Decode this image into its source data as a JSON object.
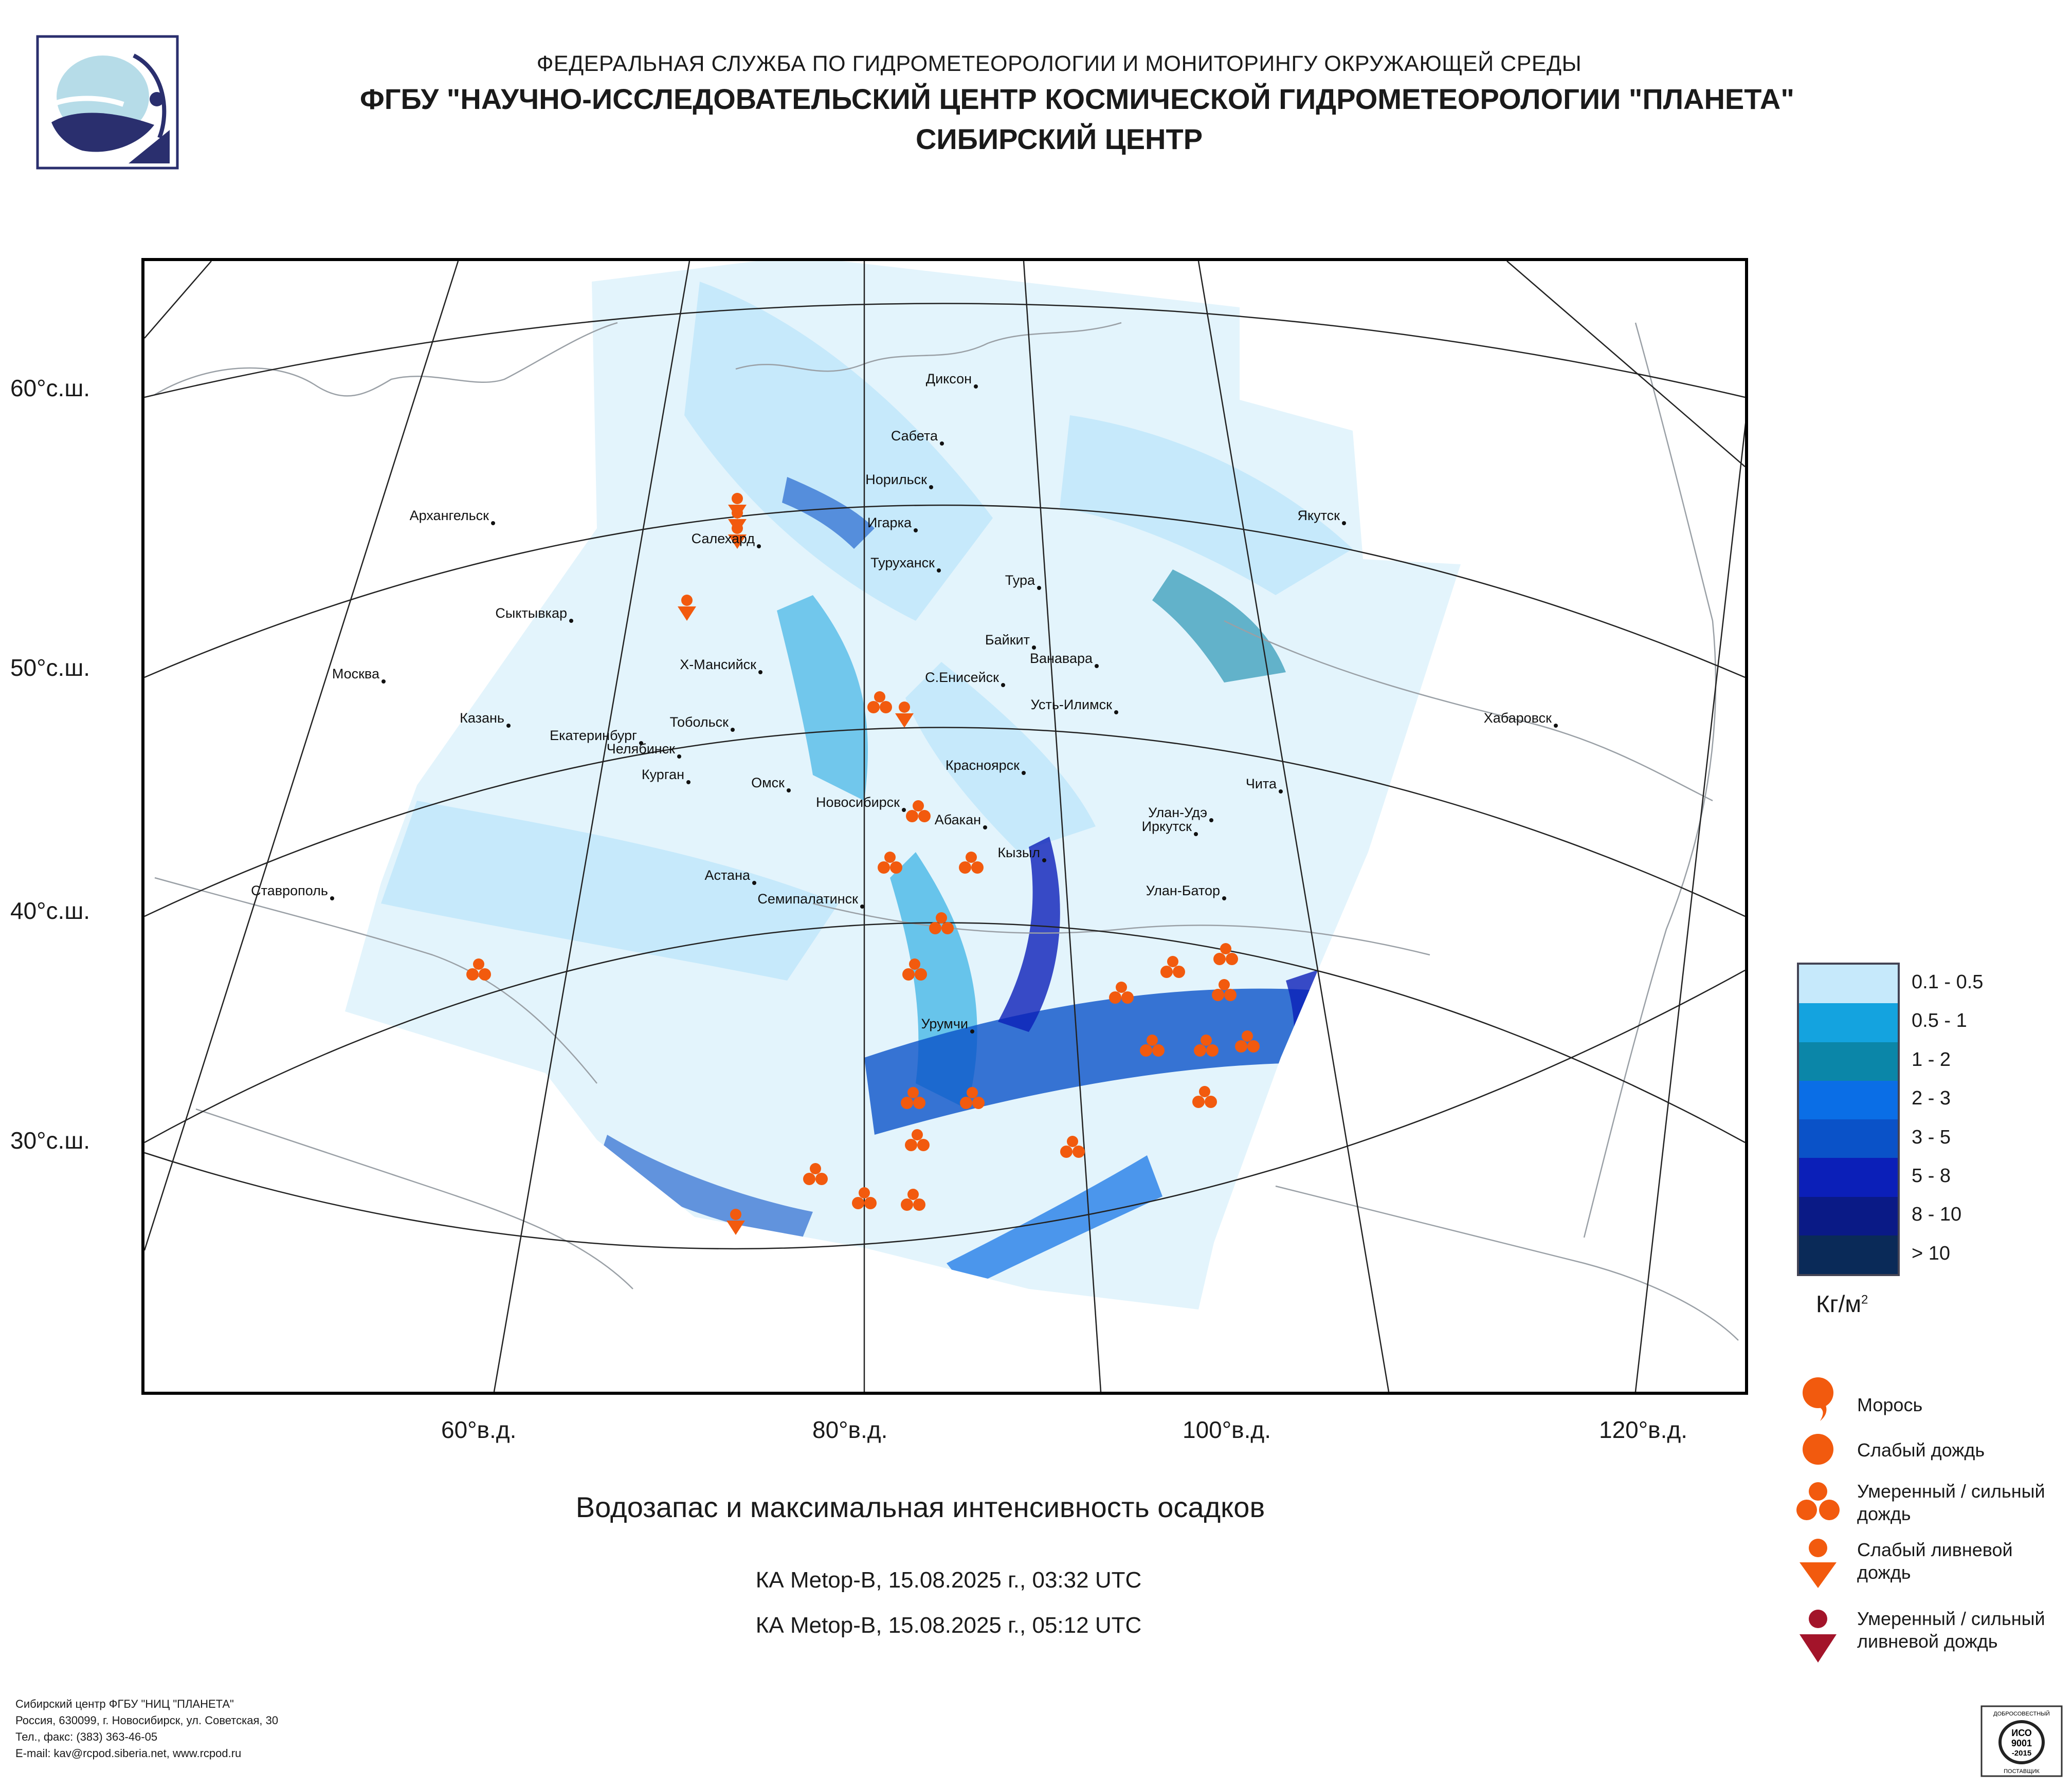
{
  "header": {
    "line1": "ФЕДЕРАЛЬНАЯ СЛУЖБА ПО ГИДРОМЕТЕОРОЛОГИИ И МОНИТОРИНГУ ОКРУЖАЮЩЕЙ СРЕДЫ",
    "line2": "ФГБУ \"НАУЧНО-ИССЛЕДОВАТЕЛЬСКИЙ ЦЕНТР КОСМИЧЕСКОЙ ГИДРОМЕТЕОРОЛОГИИ \"ПЛАНЕТА\"",
    "line3": "СИБИРСКИЙ ЦЕНТР"
  },
  "axes": {
    "lat_labels": [
      "60°с.ш.",
      "50°с.ш.",
      "40°с.ш.",
      "30°с.ш."
    ],
    "lon_labels": [
      "60°в.д.",
      "80°в.д.",
      "100°в.д.",
      "120°в.д."
    ]
  },
  "cities": [
    {
      "name": "Диксон"
    },
    {
      "name": "Сабета"
    },
    {
      "name": "Норильск"
    },
    {
      "name": "Игарка"
    },
    {
      "name": "Архангельск"
    },
    {
      "name": "Салехард"
    },
    {
      "name": "Туруханск"
    },
    {
      "name": "Тура"
    },
    {
      "name": "Якутск"
    },
    {
      "name": "Сыктывкар"
    },
    {
      "name": "Байкит"
    },
    {
      "name": "Ванавара"
    },
    {
      "name": "Москва"
    },
    {
      "name": "Х-Мансийск"
    },
    {
      "name": "С.Енисейск"
    },
    {
      "name": "Усть-Илимск"
    },
    {
      "name": "Казань"
    },
    {
      "name": "Екатеринбург"
    },
    {
      "name": "Тобольск"
    },
    {
      "name": "Хабаровск"
    },
    {
      "name": "Челябинск"
    },
    {
      "name": "Красноярск"
    },
    {
      "name": "Курган"
    },
    {
      "name": "Омск"
    },
    {
      "name": "Чита"
    },
    {
      "name": "Новосибирск"
    },
    {
      "name": "Абакан"
    },
    {
      "name": "Улан-Удэ"
    },
    {
      "name": "Иркутск"
    },
    {
      "name": "Кызыл"
    },
    {
      "name": "Астана"
    },
    {
      "name": "Ставрополь"
    },
    {
      "name": "Улан-Батор"
    },
    {
      "name": "Семипалатинск"
    },
    {
      "name": "Урумчи"
    }
  ],
  "legend": {
    "title": "Кг/м",
    "title_sup": "2",
    "bins": [
      {
        "label": "0.1 - 0.5",
        "color": "#c6e9fb"
      },
      {
        "label": "0.5 - 1",
        "color": "#14a3df"
      },
      {
        "label": "1 - 2",
        "color": "#0b86a8"
      },
      {
        "label": "2 - 3",
        "color": "#0a6ee6"
      },
      {
        "label": "3 - 5",
        "color": "#0a52c8"
      },
      {
        "label": "5 - 8",
        "color": "#0b1fb8"
      },
      {
        "label": "8 - 10",
        "color": "#0a1a86"
      },
      {
        "label": "> 10",
        "color": "#0a2a58"
      }
    ]
  },
  "symbols": {
    "drizzle": "Морось",
    "light_rain": "Слабый дождь",
    "moderate_rain_1": "Умеренный / сильный",
    "moderate_rain_2": "дождь",
    "light_shower_1": "Слабый ливневой",
    "light_shower_2": "дождь",
    "heavy_shower_1": "Умеренный / сильный",
    "heavy_shower_2": "ливневой дождь",
    "symbol_color": "#f25a0e",
    "heavy_color": "#a3142a"
  },
  "caption": {
    "title": "Водозапас и максимальная интенсивность осадков",
    "pass1": "КА Metop-B, 15.08.2025 г., 03:32 UTC",
    "pass2": "КА Metop-B, 15.08.2025 г., 05:12 UTC"
  },
  "footer": {
    "l1": "Сибирский центр ФГБУ \"НИЦ \"ПЛАНЕТА\"",
    "l2": "Россия, 630099, г. Новосибирск, ул. Советская, 30",
    "l3": "Тел., факс: (383) 363-46-05",
    "l4": "E-mail: kav@rcpod.siberia.net, www.rcpod.ru"
  },
  "cert": {
    "top": "ДОБРОСОВЕСТНЫЙ",
    "iso": "ИСО",
    "num": "9001",
    "year": "-2015",
    "bottom": "ПОСТАВЩИК"
  }
}
